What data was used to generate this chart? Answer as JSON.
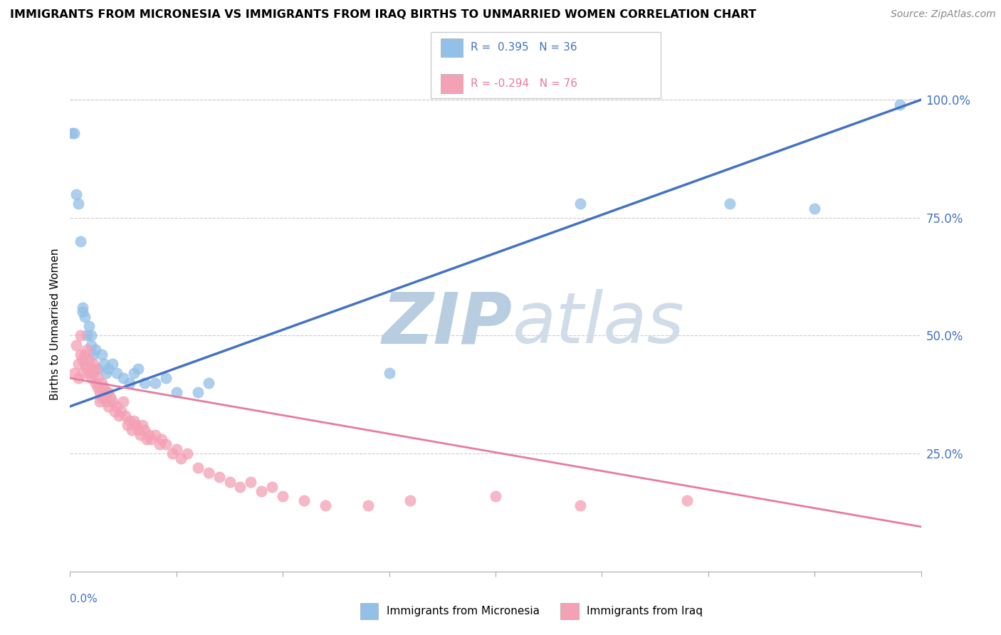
{
  "title": "IMMIGRANTS FROM MICRONESIA VS IMMIGRANTS FROM IRAQ BIRTHS TO UNMARRIED WOMEN CORRELATION CHART",
  "source": "Source: ZipAtlas.com",
  "ylabel": "Births to Unmarried Women",
  "right_yticks": [
    "25.0%",
    "50.0%",
    "75.0%",
    "100.0%"
  ],
  "right_ytick_vals": [
    0.25,
    0.5,
    0.75,
    1.0
  ],
  "legend_blue_text": "R =  0.395   N = 36",
  "legend_pink_text": "R = -0.294   N = 76",
  "legend_label_blue": "Immigrants from Micronesia",
  "legend_label_pink": "Immigrants from Iraq",
  "blue_color": "#92C0E8",
  "pink_color": "#F4A0B5",
  "blue_line_color": "#4472C4",
  "pink_line_color": "#E87A9F",
  "watermark_zip": "ZIP",
  "watermark_atlas": "atlas",
  "watermark_color": "#D5E5F5",
  "blue_scatter_x": [
    0.001,
    0.002,
    0.003,
    0.004,
    0.005,
    0.006,
    0.006,
    0.007,
    0.008,
    0.009,
    0.01,
    0.01,
    0.011,
    0.012,
    0.013,
    0.015,
    0.016,
    0.017,
    0.018,
    0.02,
    0.022,
    0.025,
    0.028,
    0.03,
    0.032,
    0.035,
    0.04,
    0.045,
    0.05,
    0.06,
    0.065,
    0.15,
    0.24,
    0.31,
    0.35,
    0.39
  ],
  "blue_scatter_y": [
    0.93,
    0.93,
    0.8,
    0.78,
    0.7,
    0.55,
    0.56,
    0.54,
    0.5,
    0.52,
    0.48,
    0.5,
    0.46,
    0.47,
    0.43,
    0.46,
    0.44,
    0.42,
    0.43,
    0.44,
    0.42,
    0.41,
    0.4,
    0.42,
    0.43,
    0.4,
    0.4,
    0.41,
    0.38,
    0.38,
    0.4,
    0.42,
    0.78,
    0.78,
    0.77,
    0.99
  ],
  "pink_scatter_x": [
    0.002,
    0.003,
    0.004,
    0.004,
    0.005,
    0.005,
    0.006,
    0.006,
    0.007,
    0.007,
    0.008,
    0.008,
    0.009,
    0.009,
    0.01,
    0.01,
    0.011,
    0.011,
    0.012,
    0.012,
    0.013,
    0.013,
    0.014,
    0.014,
    0.015,
    0.015,
    0.016,
    0.016,
    0.017,
    0.017,
    0.018,
    0.018,
    0.019,
    0.02,
    0.021,
    0.022,
    0.023,
    0.024,
    0.025,
    0.026,
    0.027,
    0.028,
    0.029,
    0.03,
    0.031,
    0.032,
    0.033,
    0.034,
    0.035,
    0.036,
    0.037,
    0.038,
    0.04,
    0.042,
    0.043,
    0.045,
    0.048,
    0.05,
    0.052,
    0.055,
    0.06,
    0.065,
    0.07,
    0.075,
    0.08,
    0.085,
    0.09,
    0.095,
    0.1,
    0.11,
    0.12,
    0.14,
    0.16,
    0.2,
    0.24,
    0.29
  ],
  "pink_scatter_y": [
    0.42,
    0.48,
    0.44,
    0.41,
    0.5,
    0.46,
    0.45,
    0.42,
    0.46,
    0.44,
    0.47,
    0.43,
    0.45,
    0.42,
    0.43,
    0.41,
    0.42,
    0.44,
    0.43,
    0.4,
    0.41,
    0.39,
    0.38,
    0.36,
    0.4,
    0.37,
    0.39,
    0.37,
    0.38,
    0.36,
    0.38,
    0.35,
    0.37,
    0.36,
    0.34,
    0.35,
    0.33,
    0.34,
    0.36,
    0.33,
    0.31,
    0.32,
    0.3,
    0.32,
    0.31,
    0.3,
    0.29,
    0.31,
    0.3,
    0.28,
    0.29,
    0.28,
    0.29,
    0.27,
    0.28,
    0.27,
    0.25,
    0.26,
    0.24,
    0.25,
    0.22,
    0.21,
    0.2,
    0.19,
    0.18,
    0.19,
    0.17,
    0.18,
    0.16,
    0.15,
    0.14,
    0.14,
    0.15,
    0.16,
    0.14,
    0.15
  ],
  "xlim": [
    0.0,
    0.4
  ],
  "ylim": [
    0.0,
    1.05
  ],
  "blue_trend_x": [
    0.0,
    0.4
  ],
  "blue_trend_y": [
    0.35,
    1.0
  ],
  "pink_trend_x": [
    0.0,
    0.4
  ],
  "pink_trend_y": [
    0.41,
    0.095
  ]
}
